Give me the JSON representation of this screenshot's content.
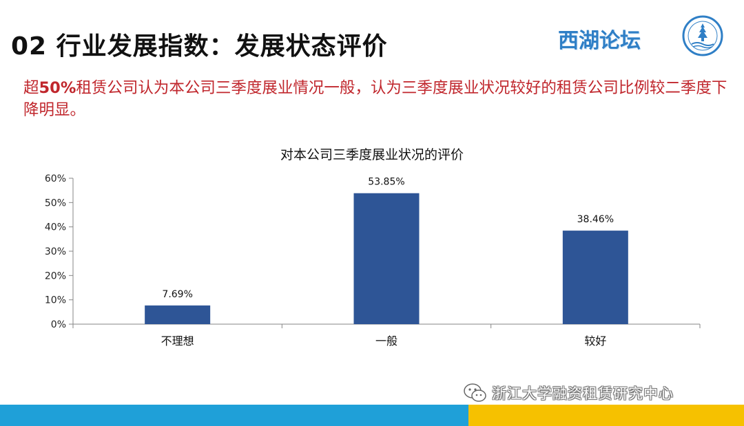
{
  "slide": {
    "title": "02 行业发展指数：发展状态评价",
    "brand": "西湖论坛",
    "summary_highlight": "50%",
    "summary_prefix": "超",
    "summary_rest": "租赁公司认为本公司三季度展业情况一般，认为三季度展业状况较好的租赁公司比例较二季度下降明显。"
  },
  "colors": {
    "bar": "#2e5596",
    "summary": "#c0262c",
    "footer_blue": "#1fa0d8",
    "footer_yellow": "#f6c100",
    "brand": "#2f7fc6"
  },
  "icons": {
    "emblem": "forum-emblem-icon",
    "wechat": "wechat-icon"
  },
  "watermark": {
    "text": "浙江大学融资租赁研究中心"
  },
  "chart_data": {
    "type": "bar",
    "title": "对本公司三季度展业状况的评价",
    "categories": [
      "不理想",
      "一般",
      "较好"
    ],
    "values": [
      7.69,
      53.85,
      38.46
    ],
    "value_labels": [
      "7.69%",
      "53.85%",
      "38.46%"
    ],
    "y_ticks": [
      "0%",
      "10%",
      "20%",
      "30%",
      "40%",
      "50%",
      "60%"
    ],
    "ylim": [
      0,
      60
    ],
    "grid": false,
    "legend": "none"
  }
}
